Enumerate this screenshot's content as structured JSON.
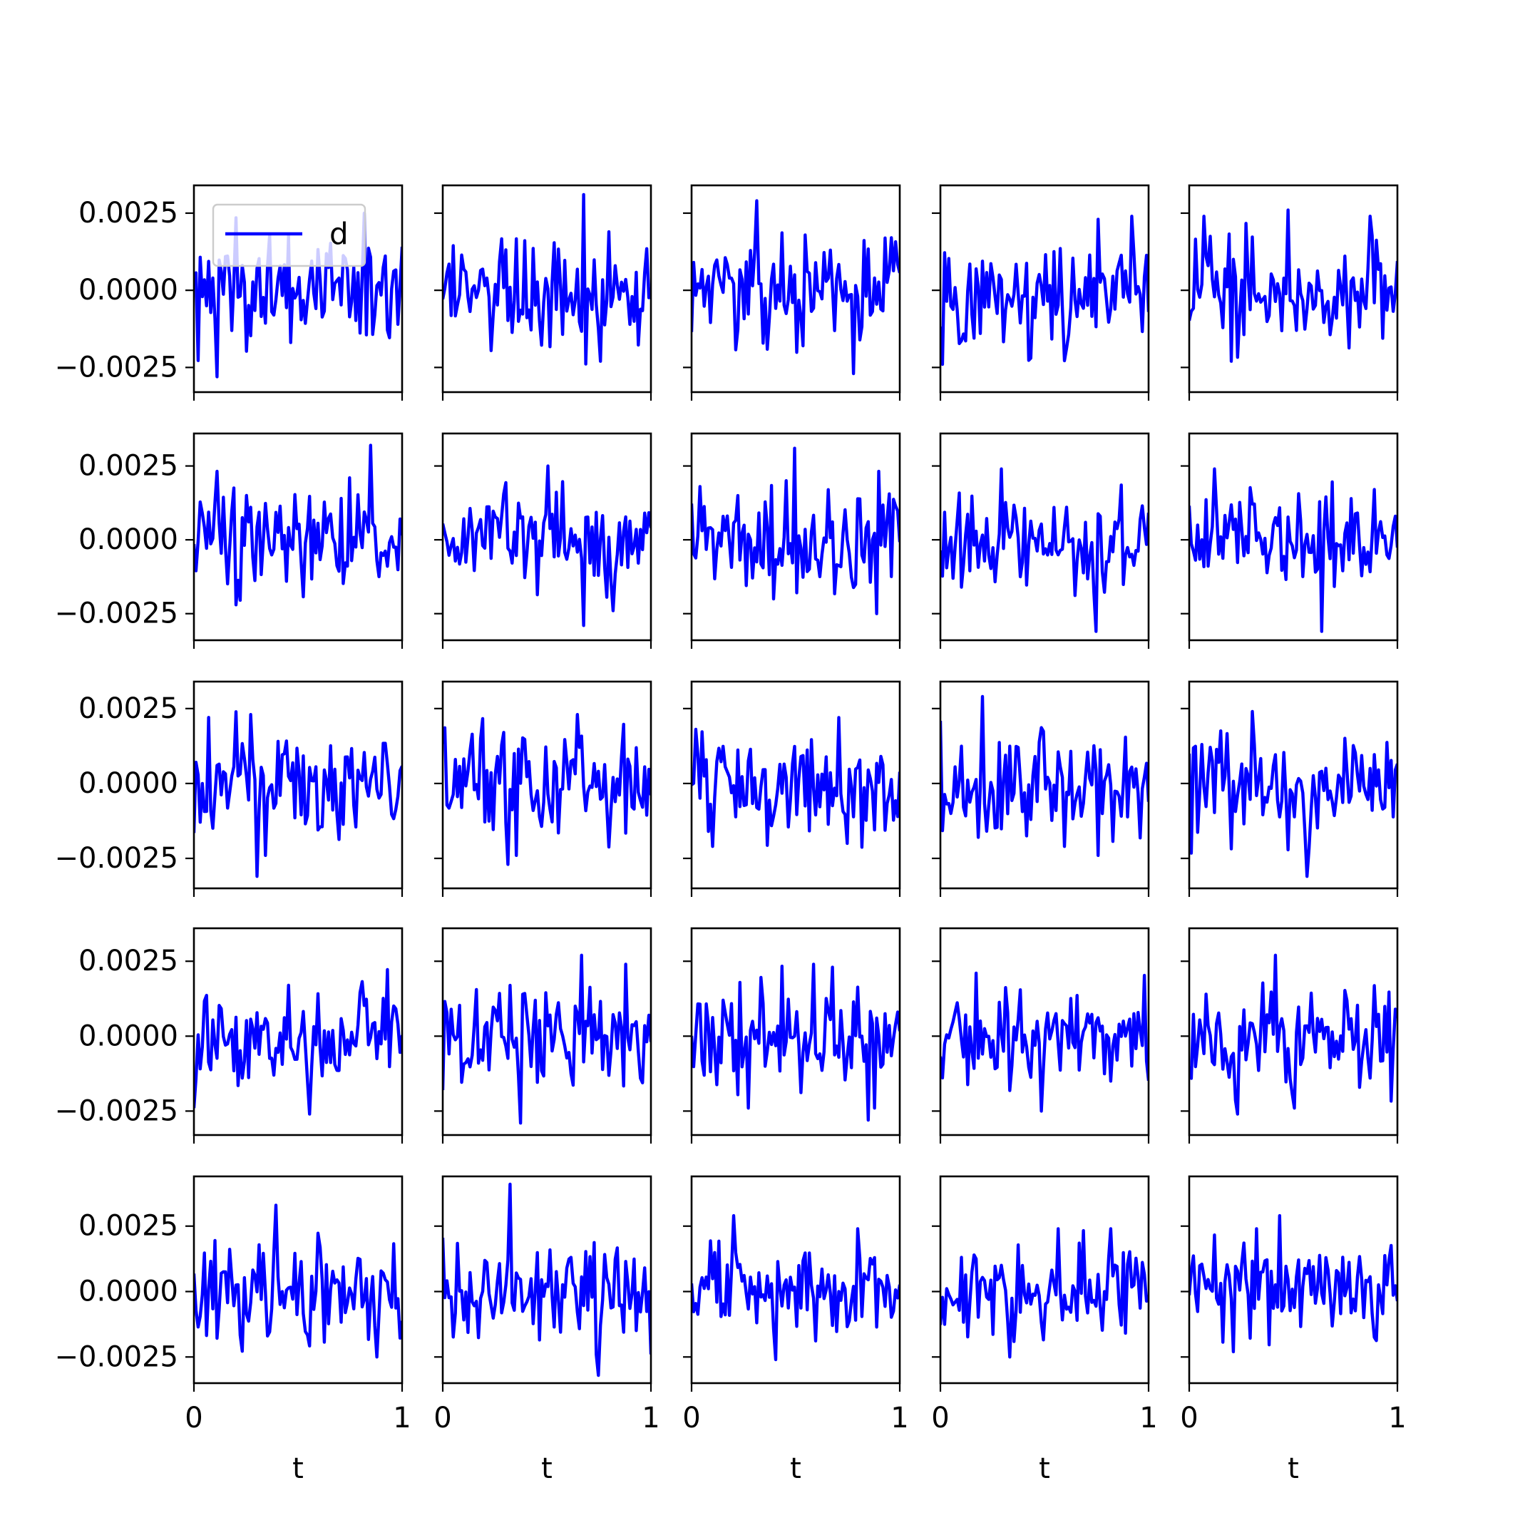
{
  "figure": {
    "rows": 5,
    "cols": 5,
    "sharex": true,
    "sharey_per_row": true
  },
  "chart_data": {
    "type": "line",
    "layout": "5x5 grid of small multiples",
    "series_color": "#0000ff",
    "legend": {
      "label": "d",
      "location": "upper-left",
      "panel": "row 1, column 1"
    },
    "x_axis": {
      "label": "t",
      "ticks": [
        0,
        1
      ],
      "tick_labels": [
        "0",
        "1"
      ],
      "lim": [
        0,
        1
      ]
    },
    "y_axis": {
      "ticks": [
        -0.0025,
        0.0,
        0.0025
      ],
      "tick_labels": [
        "−0.0025",
        "0.0000",
        "0.0025"
      ],
      "row_limits": [
        [
          -0.0033,
          0.0034
        ],
        [
          -0.0034,
          0.0036
        ],
        [
          -0.0035,
          0.0034
        ],
        [
          -0.0033,
          0.0036
        ],
        [
          -0.0035,
          0.0044
        ]
      ]
    },
    "grid": false,
    "samples_per_panel": 100,
    "amplitude_note": "noise-like signal, mostly within ±0.0025",
    "panel_extremes": [
      {
        "panel": "r1c1",
        "max": 0.0025,
        "min": -0.0028
      },
      {
        "panel": "r1c2",
        "max": 0.0031,
        "min": -0.0023
      },
      {
        "panel": "r1c3",
        "max": 0.0029,
        "min": -0.0027
      },
      {
        "panel": "r1c4",
        "max": 0.0023,
        "min": -0.0022
      },
      {
        "panel": "r1c5",
        "max": 0.0026,
        "min": -0.0023
      },
      {
        "panel": "r2c1",
        "max": 0.0032,
        "min": -0.0022
      },
      {
        "panel": "r2c2",
        "max": 0.0025,
        "min": -0.0029
      },
      {
        "panel": "r2c3",
        "max": 0.0031,
        "min": -0.0025
      },
      {
        "panel": "r2c4",
        "max": 0.0024,
        "min": -0.0031
      },
      {
        "panel": "r2c5",
        "max": 0.0024,
        "min": -0.0031
      },
      {
        "panel": "r3c1",
        "max": 0.0023,
        "min": -0.0031
      },
      {
        "panel": "r3c2",
        "max": 0.0023,
        "min": -0.0027
      },
      {
        "panel": "r3c3",
        "max": 0.0022,
        "min": -0.0021
      },
      {
        "panel": "r3c4",
        "max": 0.0029,
        "min": -0.0021
      },
      {
        "panel": "r3c5",
        "max": 0.0024,
        "min": -0.0031
      },
      {
        "panel": "r4c1",
        "max": 0.0017,
        "min": -0.0026
      },
      {
        "panel": "r4c2",
        "max": 0.0027,
        "min": -0.0029
      },
      {
        "panel": "r4c3",
        "max": 0.0023,
        "min": -0.0028
      },
      {
        "panel": "r4c4",
        "max": 0.0021,
        "min": -0.0025
      },
      {
        "panel": "r4c5",
        "max": 0.0027,
        "min": -0.0026
      },
      {
        "panel": "r5c1",
        "max": 0.0033,
        "min": -0.0025
      },
      {
        "panel": "r5c2",
        "max": 0.0041,
        "min": -0.0032
      },
      {
        "panel": "r5c3",
        "max": 0.0029,
        "min": -0.0026
      },
      {
        "panel": "r5c4",
        "max": 0.0024,
        "min": -0.0025
      },
      {
        "panel": "r5c5",
        "max": 0.0029,
        "min": -0.0023
      }
    ]
  }
}
